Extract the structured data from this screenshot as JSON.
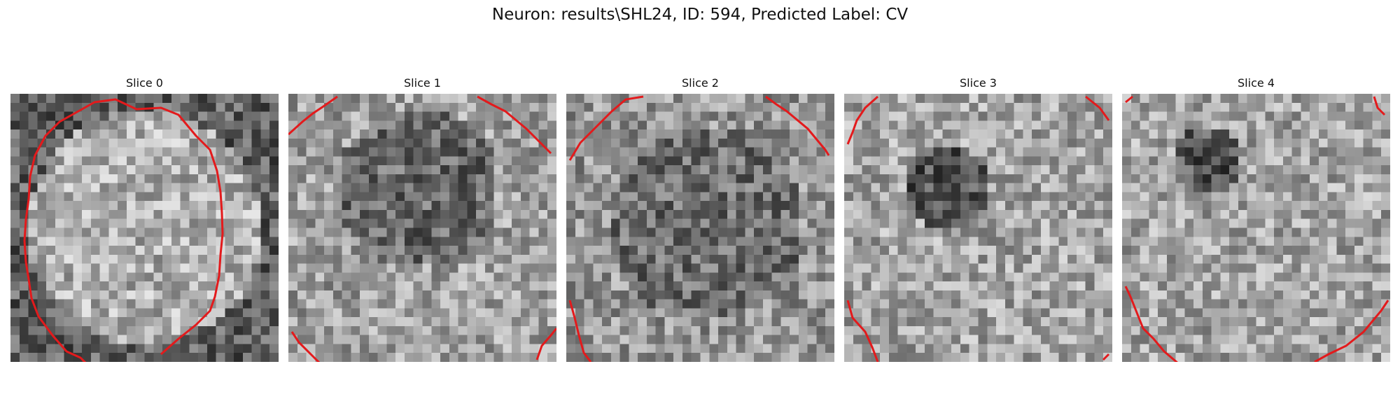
{
  "figure": {
    "title": "Neuron: results\\SHL24, ID: 594, Predicted Label: CV"
  },
  "slices": [
    {
      "title": "Slice 0"
    },
    {
      "title": "Slice 1"
    },
    {
      "title": "Slice 2"
    },
    {
      "title": "Slice 3"
    },
    {
      "title": "Slice 4"
    }
  ],
  "colors": {
    "contour": "#e31a1c",
    "background": "#ffffff"
  }
}
